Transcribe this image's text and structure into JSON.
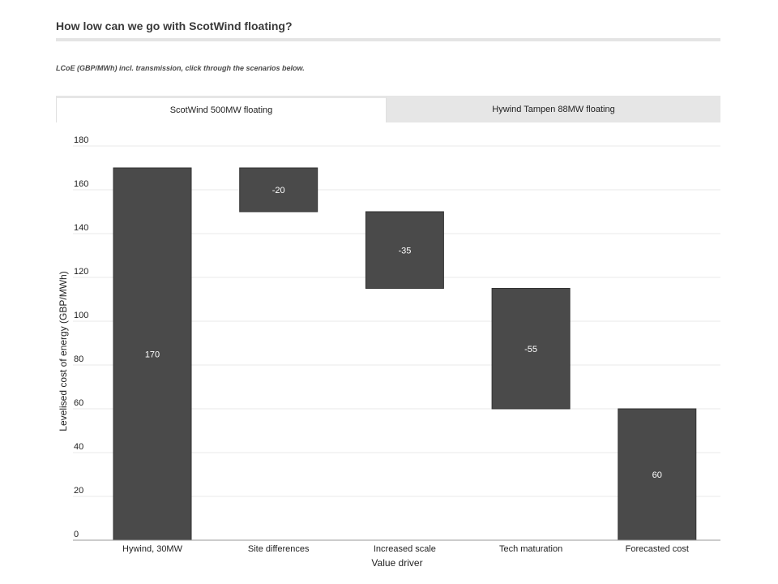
{
  "header": {
    "title": "How low can we go with ScotWind floating?",
    "subtitle": "LCoE (GBP/MWh) incl. transmission, click through the scenarios below."
  },
  "tabs": [
    {
      "label": "ScotWind 500MW floating",
      "active": true
    },
    {
      "label": "Hywind Tampen 88MW floating",
      "active": false
    }
  ],
  "colors": {
    "bar": "#4a4a4a",
    "grid": "#e8e8e8",
    "axis": "#9a9a9a"
  },
  "chart_data": {
    "type": "waterfall",
    "categories": [
      "Hywind, 30MW",
      "Site differences",
      "Increased scale",
      "Tech maturation",
      "Forecasted cost"
    ],
    "steps": [
      {
        "label": "Hywind, 30MW",
        "start": 0,
        "end": 170,
        "display": "170"
      },
      {
        "label": "Site differences",
        "start": 170,
        "end": 150,
        "display": "-20"
      },
      {
        "label": "Increased scale",
        "start": 150,
        "end": 115,
        "display": "-35"
      },
      {
        "label": "Tech maturation",
        "start": 115,
        "end": 60,
        "display": "-55"
      },
      {
        "label": "Forecasted cost",
        "start": 0,
        "end": 60,
        "display": "60"
      }
    ],
    "yticks": [
      0,
      20,
      40,
      60,
      80,
      100,
      120,
      140,
      160,
      180
    ],
    "ylim": [
      0,
      180
    ],
    "xlabel": "Value driver",
    "ylabel": "Levelised cost of energy (GBP/MWh)",
    "grid": true
  }
}
